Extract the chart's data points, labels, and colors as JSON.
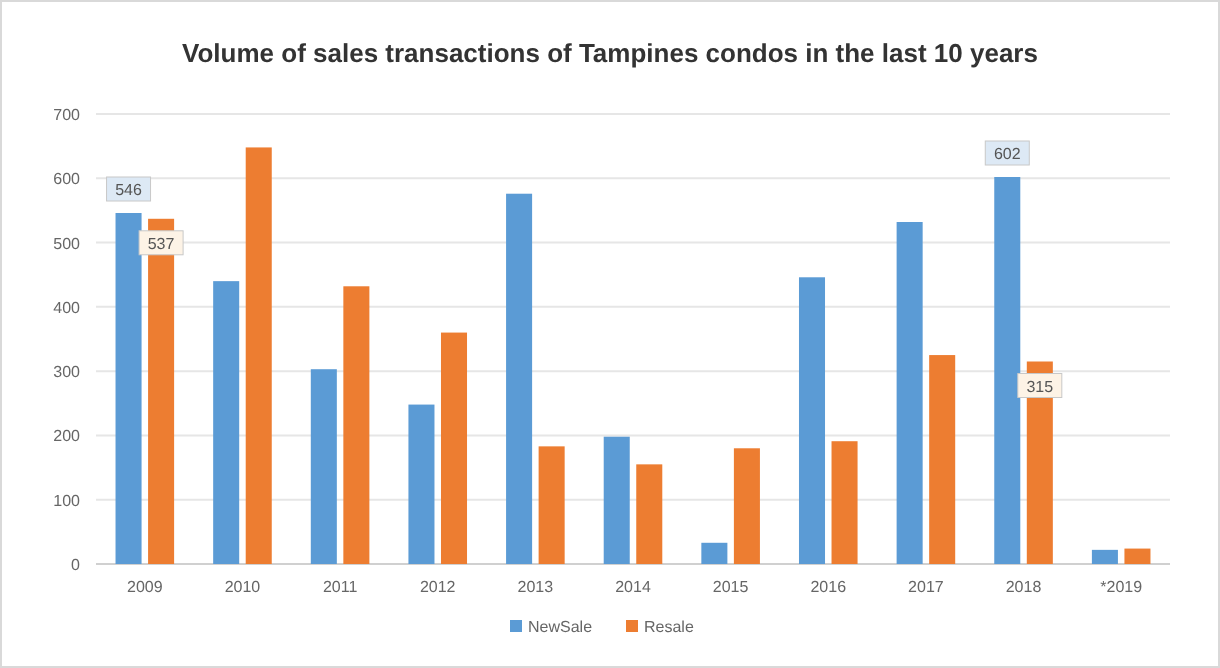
{
  "chart_data": {
    "type": "bar",
    "title": "Volume of sales transactions of Tampines condos in the last 10 years",
    "categories": [
      "2009",
      "2010",
      "2011",
      "2012",
      "2013",
      "2014",
      "2015",
      "2016",
      "2017",
      "2018",
      "*2019"
    ],
    "series": [
      {
        "name": "NewSale",
        "color": "#5b9bd5",
        "values": [
          546,
          440,
          303,
          248,
          576,
          198,
          33,
          446,
          532,
          602,
          22
        ],
        "value_labels": [
          "546",
          null,
          null,
          null,
          null,
          null,
          null,
          null,
          null,
          "602",
          null
        ]
      },
      {
        "name": "Resale",
        "color": "#ed7d31",
        "values": [
          537,
          648,
          432,
          360,
          183,
          155,
          180,
          191,
          325,
          315,
          24
        ],
        "value_labels": [
          "537",
          null,
          null,
          null,
          null,
          null,
          null,
          null,
          null,
          "315",
          null
        ]
      }
    ],
    "ylim": [
      0,
      700
    ],
    "yticks": [
      0,
      100,
      200,
      300,
      400,
      500,
      600,
      700
    ],
    "grid": "y",
    "legend": "bottom"
  }
}
